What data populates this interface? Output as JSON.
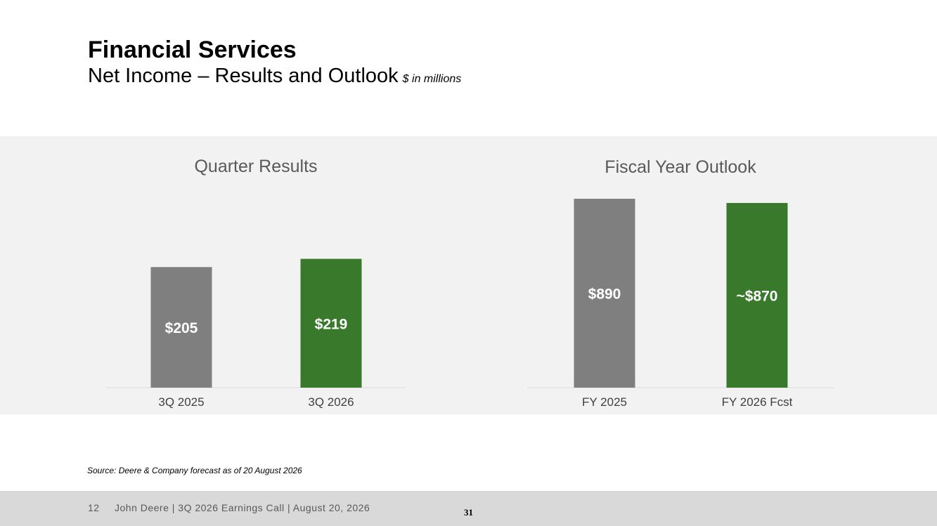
{
  "header": {
    "title": "Financial Services",
    "subtitle": "Net Income – Results and Outlook",
    "units": "$ in millions"
  },
  "colors": {
    "prior": "#7f7f7f",
    "current": "#38792b",
    "panel": "#f2f2f2",
    "footer": "#d9d9d9"
  },
  "chart_data": [
    {
      "type": "bar",
      "title": "Quarter Results",
      "categories": [
        "3Q 2025",
        "3Q 2026"
      ],
      "values": [
        205,
        219
      ],
      "data_labels": [
        "$205",
        "$219"
      ],
      "bar_colors": [
        "#7f7f7f",
        "#38792b"
      ],
      "ylim": [
        0,
        320
      ],
      "grid": false,
      "legend": "none"
    },
    {
      "type": "bar",
      "title": "Fiscal Year Outlook",
      "categories": [
        "FY 2025",
        "FY 2026 Fcst"
      ],
      "values": [
        890,
        870
      ],
      "data_labels": [
        "$890",
        "~$870"
      ],
      "bar_colors": [
        "#7f7f7f",
        "#38792b"
      ],
      "ylim": [
        0,
        890
      ],
      "grid": false,
      "legend": "none"
    }
  ],
  "source": "Source: Deere & Company forecast as of 20 August 2026",
  "footer": {
    "page": "12",
    "text": "John Deere | 3Q 2026 Earnings Call | August 20, 2026",
    "slide_number": "31"
  }
}
